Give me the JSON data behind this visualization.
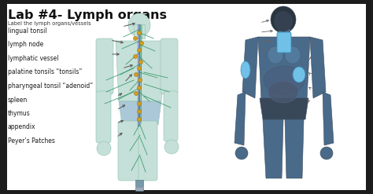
{
  "title": "Lab #4- Lymph organs",
  "subtitle": "Label the lymph organs/vessels",
  "labels": [
    "lingual tonsil",
    "lymph node",
    "lymphatic vessel",
    "palatine tonsils “tonsils”",
    "pharyngeal tonsil “adenoid”",
    "spleen",
    "thymus",
    "appendix",
    "Peyer’s Patches"
  ],
  "bg_color": "#1c1c1c",
  "slide_bg": "#ffffff",
  "title_color": "#111111",
  "label_color": "#1a1a1a",
  "arrow_color": "#555555",
  "body_left_skin": "#b8ddd4",
  "body_left_edge": "#80b8a8",
  "body_left_lymph": "#3a9868",
  "body_left_vessel": "#6080b0",
  "body_right_skin": "#5a7a9a",
  "body_right_highlight": "#70b8e0",
  "body_right_dark": "#2a3a50"
}
